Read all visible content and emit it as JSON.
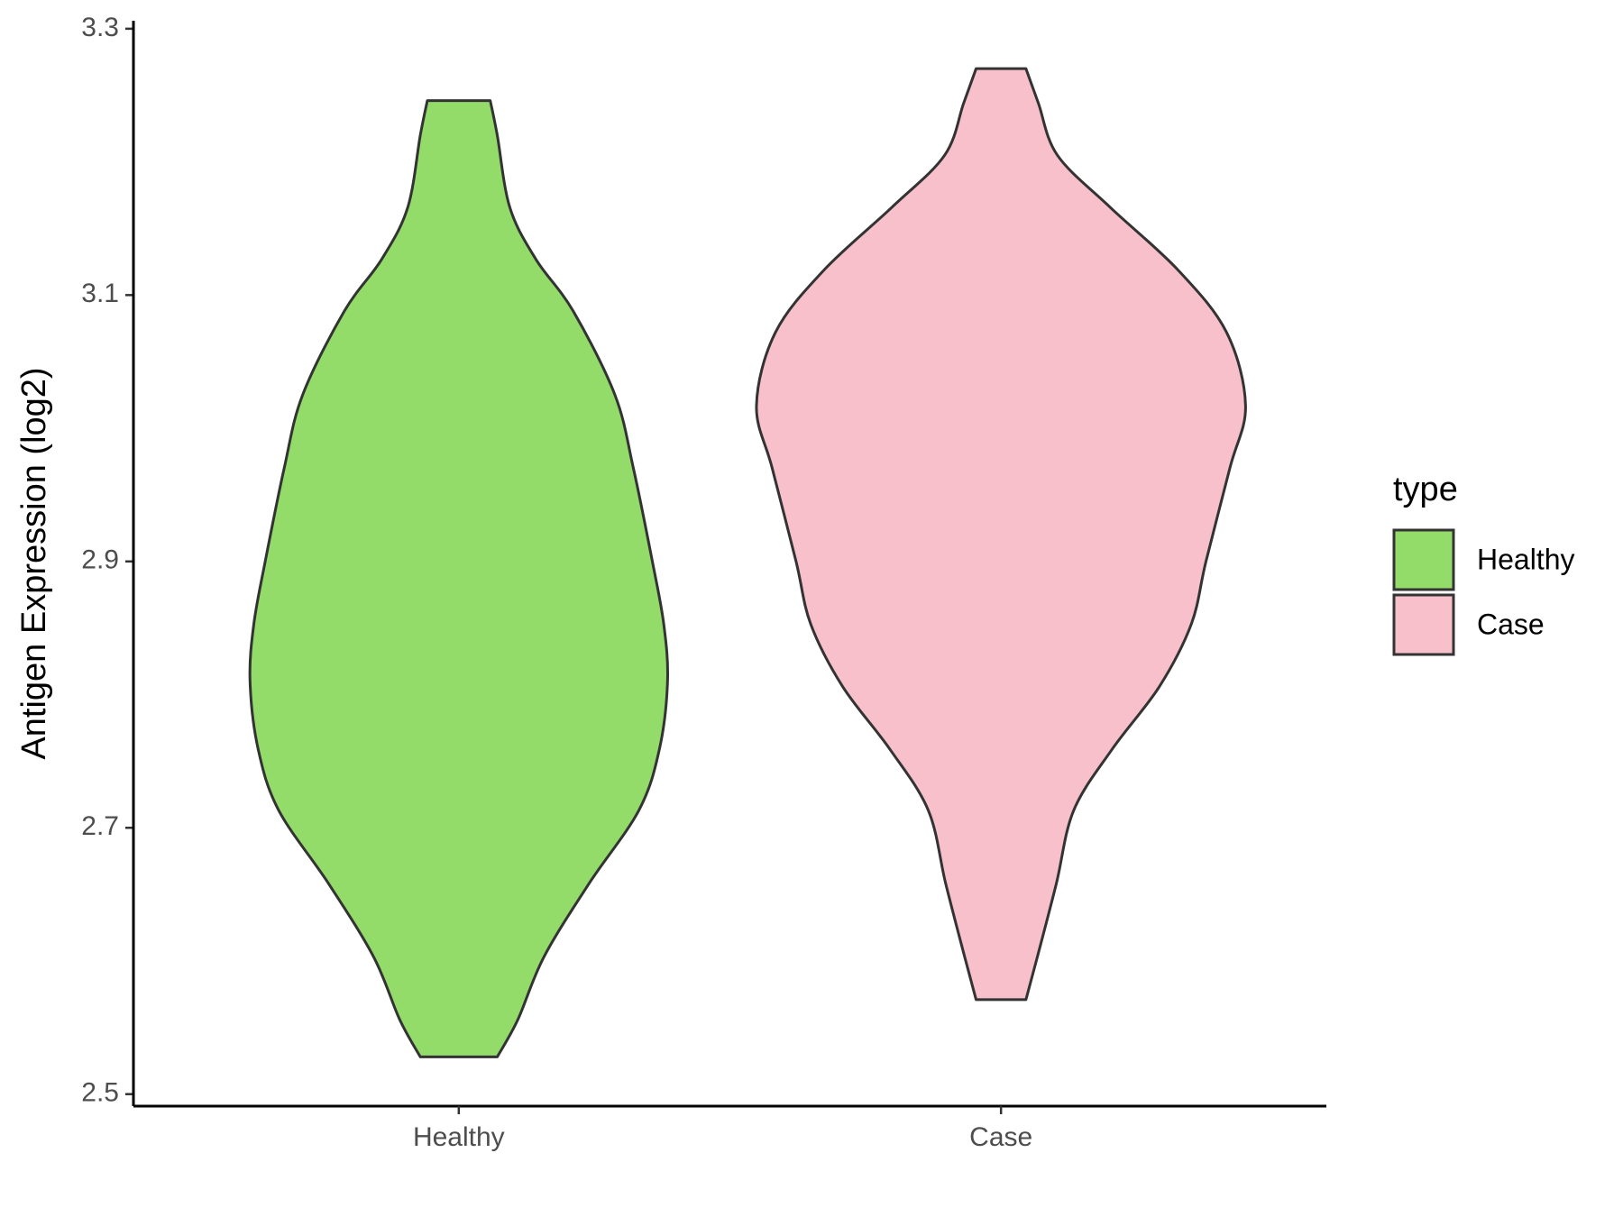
{
  "chart_data": {
    "type": "violin",
    "y_label": "Antigen Expression (log2)",
    "categories": [
      "Healthy",
      "Case"
    ],
    "series": [
      {
        "name": "Healthy",
        "color": "#93dc6a",
        "y": [
          3.246,
          3.22,
          3.166,
          3.127,
          3.088,
          3.025,
          2.97,
          2.9,
          2.853,
          2.81,
          2.759,
          2.713,
          2.658,
          2.603,
          2.556,
          2.528
        ],
        "width": [
          0.058,
          0.071,
          0.094,
          0.142,
          0.211,
          0.288,
          0.322,
          0.357,
          0.378,
          0.385,
          0.37,
          0.332,
          0.24,
          0.157,
          0.109,
          0.071
        ]
      },
      {
        "name": "Case",
        "color": "#f7c0cb",
        "y": [
          3.27,
          3.244,
          3.205,
          3.166,
          3.119,
          3.072,
          3.017,
          2.97,
          2.9,
          2.853,
          2.806,
          2.759,
          2.713,
          2.658,
          2.603,
          2.571
        ],
        "width": [
          0.046,
          0.069,
          0.104,
          0.201,
          0.326,
          0.416,
          0.451,
          0.422,
          0.378,
          0.351,
          0.292,
          0.205,
          0.134,
          0.102,
          0.067,
          0.046
        ]
      }
    ],
    "ylim": [
      2.491,
      3.306
    ],
    "yticks": [
      2.5,
      2.7,
      2.9,
      3.1,
      3.3
    ],
    "legend_title": "type",
    "legend_position": "right"
  }
}
